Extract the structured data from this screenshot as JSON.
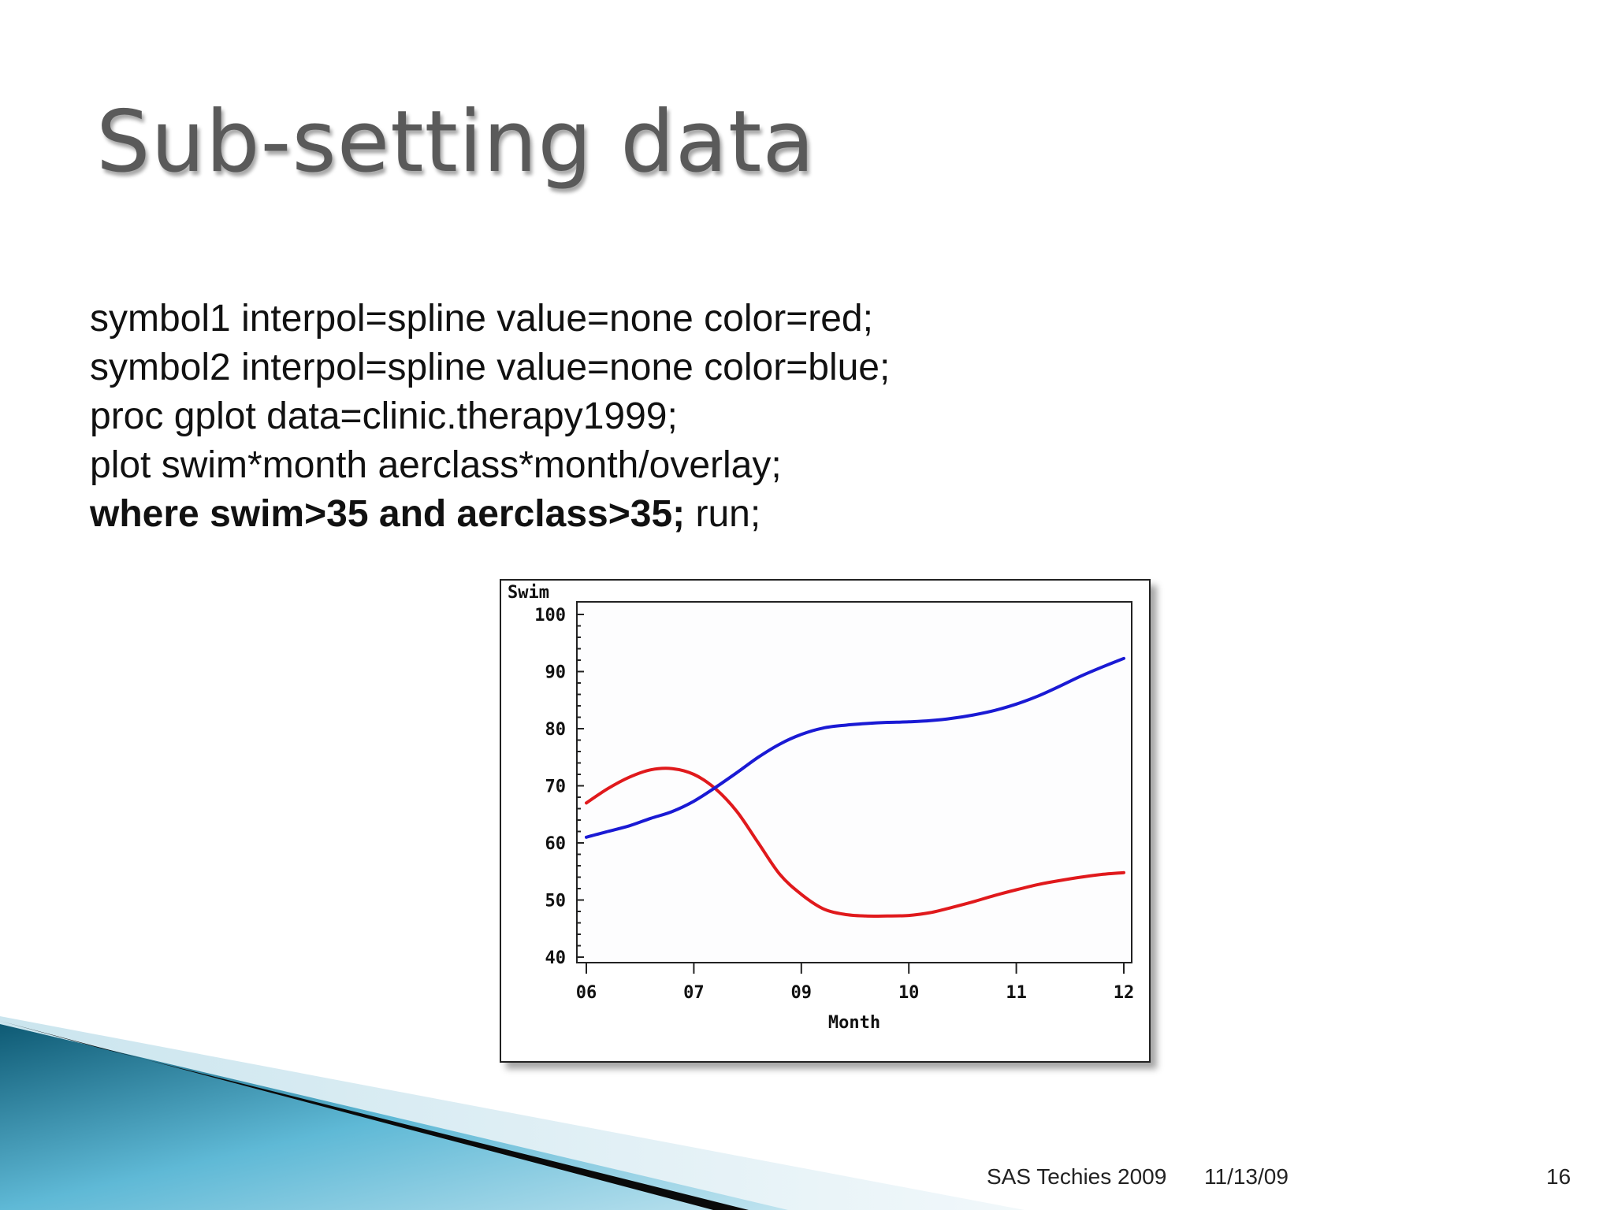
{
  "slide": {
    "title": "Sub-setting data",
    "code_lines": [
      "symbol1 interpol=spline value=none color=red;",
      "symbol2 interpol=spline value=none color=blue;",
      "proc gplot data=clinic.therapy1999;",
      "plot swim*month aerclass*month/overlay;"
    ],
    "code_last_bold": "where swim>35 and aerclass>35;",
    "code_last_plain": " run;",
    "footer": {
      "left": "SAS Techies 2009",
      "date": "11/13/09",
      "page": "16"
    }
  },
  "colors": {
    "swim": "#e0191c",
    "aerclass": "#1a1ad4",
    "title": "#5a5a5a",
    "decor_dark": "#0e5a74",
    "decor_light": "#5fb9d6"
  },
  "chart_data": {
    "type": "line",
    "title": "",
    "ylabel": "Swim",
    "xlabel": "Month",
    "ylim": [
      40,
      100
    ],
    "yticks": [
      "40",
      "50",
      "60",
      "70",
      "80",
      "90",
      "100"
    ],
    "categories": [
      "06",
      "07",
      "09",
      "10",
      "11",
      "12"
    ],
    "series": [
      {
        "color": "red",
        "x": [
          0,
          0.2,
          0.4,
          0.6,
          0.8,
          1.0,
          1.2,
          1.4,
          1.6,
          1.8,
          2.0,
          2.2,
          2.4,
          2.6,
          2.8,
          3.0,
          3.2,
          3.4,
          3.6,
          3.8,
          4.0,
          4.2,
          4.4,
          4.6,
          4.8,
          5.0
        ],
        "values": [
          67,
          69.5,
          71.5,
          72.8,
          73,
          72,
          69.5,
          65.5,
          60,
          54.5,
          51,
          48.5,
          47.5,
          47.2,
          47.2,
          47.3,
          47.8,
          48.7,
          49.7,
          50.8,
          51.8,
          52.7,
          53.4,
          54.0,
          54.5,
          54.8
        ]
      },
      {
        "color": "blue",
        "x": [
          0,
          0.2,
          0.4,
          0.6,
          0.8,
          1.0,
          1.2,
          1.4,
          1.6,
          1.8,
          2.0,
          2.2,
          2.4,
          2.6,
          2.8,
          3.0,
          3.2,
          3.4,
          3.6,
          3.8,
          4.0,
          4.2,
          4.4,
          4.6,
          4.8,
          5.0
        ],
        "values": [
          61,
          62,
          63,
          64.3,
          65.5,
          67.3,
          69.7,
          72.3,
          75,
          77.3,
          79,
          80.1,
          80.6,
          80.9,
          81.1,
          81.2,
          81.4,
          81.8,
          82.4,
          83.2,
          84.3,
          85.7,
          87.4,
          89.2,
          90.8,
          92.3
        ]
      }
    ]
  }
}
